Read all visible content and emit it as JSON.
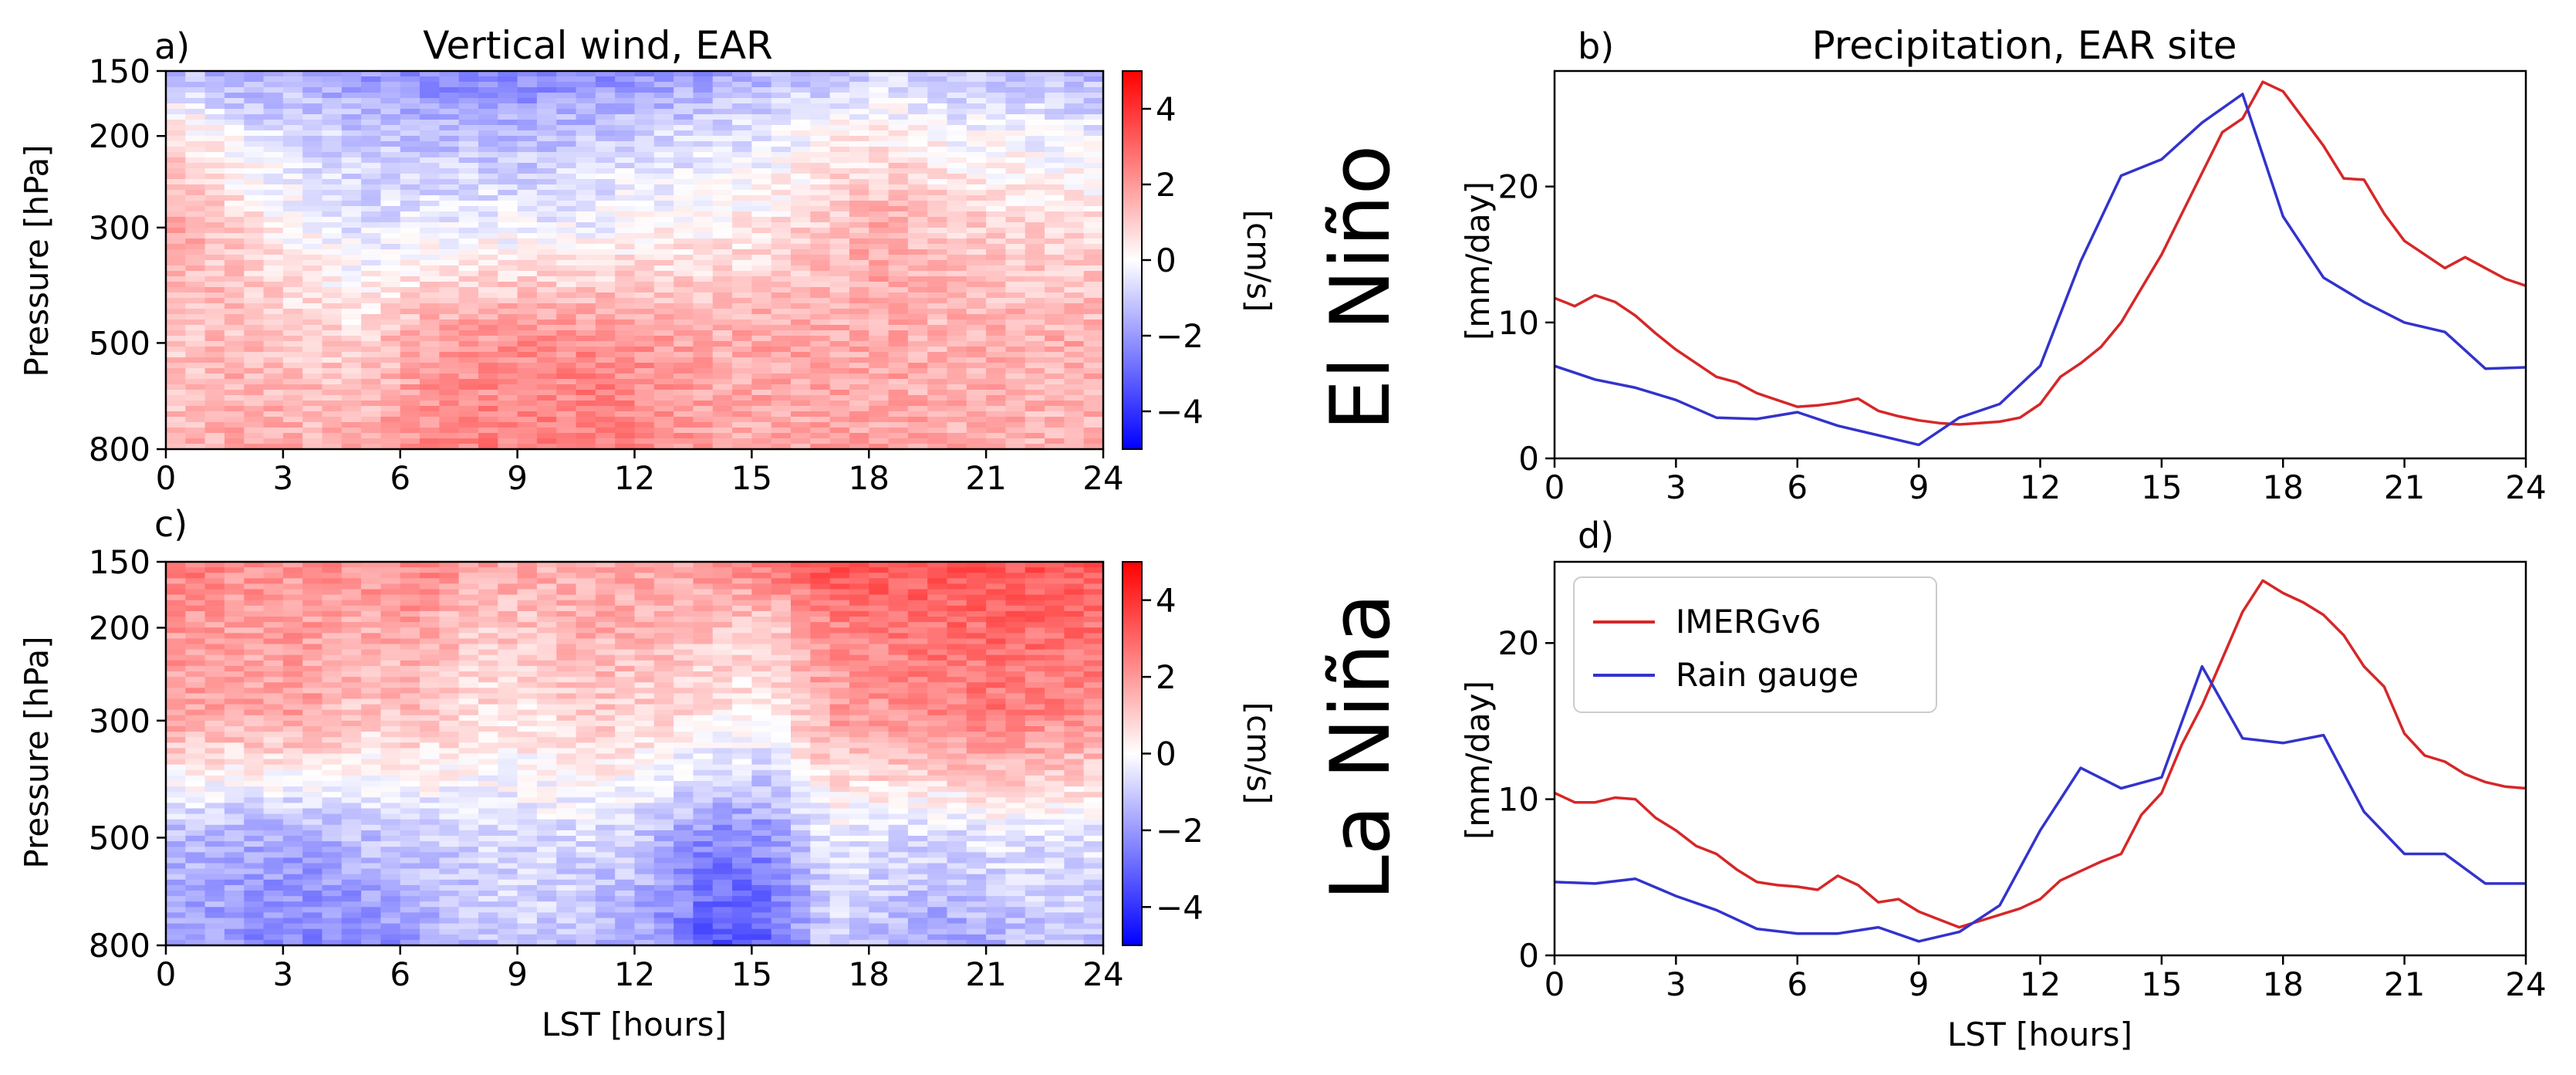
{
  "figure": {
    "row_labels": [
      "El Niño",
      "La Niña"
    ]
  },
  "chart_data": [
    {
      "id": "a",
      "type": "heatmap",
      "panel_label": "a)",
      "title": "Vertical wind, EAR",
      "ylabel": "Pressure [hPa]",
      "xlabel": "",
      "xlim": [
        0,
        24
      ],
      "xticks": [
        0,
        3,
        6,
        9,
        12,
        15,
        18,
        21,
        24
      ],
      "ylim": [
        800,
        150
      ],
      "yscale": "log",
      "yticks": [
        150,
        200,
        300,
        500,
        800
      ],
      "levels": [
        150,
        200,
        300,
        500,
        800
      ],
      "hours": [
        0.5,
        2,
        3.5,
        5,
        6.5,
        8,
        9.5,
        11,
        12.5,
        14,
        15.5,
        17,
        18.5,
        20,
        21.5,
        23
      ],
      "values_by_level": [
        [
          -1.2,
          -1.8,
          -1.5,
          -2.0,
          -2.4,
          -2.6,
          -2.5,
          -2.3,
          -2.2,
          -1.9,
          -1.4,
          -1.2,
          -1.0,
          -1.3,
          -1.1,
          -1.5
        ],
        [
          0.6,
          -0.4,
          -0.8,
          -1.0,
          -1.2,
          -1.4,
          -1.3,
          -1.0,
          -0.8,
          -0.6,
          -0.4,
          0.2,
          0.4,
          0.0,
          -0.2,
          -0.3
        ],
        [
          1.6,
          0.8,
          0.0,
          -0.6,
          -0.4,
          -0.2,
          -0.3,
          -0.2,
          0.1,
          0.2,
          0.5,
          1.2,
          1.8,
          1.0,
          0.9,
          0.7
        ],
        [
          1.2,
          1.4,
          1.0,
          0.8,
          1.8,
          2.1,
          2.2,
          2.3,
          2.0,
          1.6,
          1.8,
          1.6,
          1.7,
          1.5,
          1.6,
          1.6
        ],
        [
          1.4,
          1.8,
          1.6,
          1.6,
          2.2,
          2.5,
          2.4,
          2.6,
          2.2,
          1.8,
          1.6,
          1.8,
          1.8,
          1.6,
          1.5,
          1.4
        ]
      ],
      "colorbar": {
        "label": "[cm/s]",
        "range": [
          -5,
          5
        ],
        "ticks": [
          -4,
          -2,
          0,
          2,
          4
        ],
        "cmap": "bwr"
      }
    },
    {
      "id": "b",
      "type": "line",
      "panel_label": "b)",
      "title": "Precipitation, EAR site",
      "ylabel": "[mm/day]",
      "xlabel": "",
      "xlim": [
        0,
        24
      ],
      "xticks": [
        0,
        3,
        6,
        9,
        12,
        15,
        18,
        21,
        24
      ],
      "ylim": [
        0,
        28.5
      ],
      "yticks": [
        0,
        10,
        20
      ],
      "series": [
        {
          "name": "IMERGv6",
          "color": "#d62728",
          "x": [
            0,
            0.5,
            1,
            1.5,
            2,
            2.5,
            3,
            3.5,
            4,
            4.5,
            5,
            5.5,
            6,
            6.5,
            7,
            7.5,
            8,
            8.5,
            9,
            9.5,
            10,
            10.5,
            11,
            11.5,
            12,
            12.5,
            13,
            13.5,
            14,
            14.5,
            15,
            15.5,
            16,
            16.5,
            17,
            17.5,
            18,
            18.5,
            19,
            19.5,
            20,
            20.5,
            21,
            21.5,
            22,
            22.5,
            23,
            23.5,
            24
          ],
          "y": [
            11.8,
            11.2,
            12.0,
            11.5,
            10.5,
            9.2,
            8.0,
            7.0,
            6.0,
            5.6,
            4.8,
            4.3,
            3.8,
            3.9,
            4.1,
            4.4,
            3.5,
            3.1,
            2.8,
            2.6,
            2.5,
            2.6,
            2.7,
            3.0,
            4.0,
            6.0,
            7.0,
            8.2,
            10.0,
            12.5,
            15.0,
            18.0,
            21.0,
            24.0,
            25.0,
            27.7,
            27.0,
            25.0,
            23.0,
            20.6,
            20.5,
            18.0,
            16.0,
            15.0,
            14.0,
            14.8,
            14.0,
            13.2,
            12.7
          ]
        },
        {
          "name": "Rain gauge",
          "color": "#3333cc",
          "x": [
            0,
            1,
            2,
            3,
            4,
            5,
            6,
            7,
            8,
            9,
            10,
            11,
            12,
            13,
            14,
            15,
            16,
            17,
            18,
            19,
            20,
            21,
            22,
            23,
            24
          ],
          "y": [
            6.8,
            5.8,
            5.2,
            4.3,
            3.0,
            2.9,
            3.4,
            2.4,
            1.7,
            1.0,
            3.0,
            4.0,
            6.8,
            14.5,
            20.8,
            22.0,
            24.7,
            26.8,
            17.8,
            13.3,
            11.5,
            10.0,
            9.3,
            6.6,
            6.7
          ]
        }
      ]
    },
    {
      "id": "c",
      "type": "heatmap",
      "panel_label": "c)",
      "title": "",
      "ylabel": "Pressure [hPa]",
      "xlabel": "LST [hours]",
      "xlim": [
        0,
        24
      ],
      "xticks": [
        0,
        3,
        6,
        9,
        12,
        15,
        18,
        21,
        24
      ],
      "ylim": [
        800,
        150
      ],
      "yscale": "log",
      "yticks": [
        150,
        200,
        300,
        500,
        800
      ],
      "levels": [
        150,
        200,
        300,
        500,
        800
      ],
      "hours": [
        0.5,
        2,
        3.5,
        5,
        6.5,
        8,
        9.5,
        11,
        12.5,
        14,
        15.5,
        17,
        18.5,
        20,
        21.5,
        23
      ],
      "values_by_level": [
        [
          2.6,
          2.2,
          2.0,
          2.2,
          2.4,
          1.8,
          1.6,
          1.5,
          1.8,
          2.0,
          2.6,
          3.6,
          3.4,
          3.2,
          3.4,
          3.2
        ],
        [
          2.0,
          1.8,
          2.0,
          1.6,
          1.8,
          1.0,
          1.2,
          1.6,
          1.4,
          1.2,
          1.0,
          2.2,
          2.6,
          2.8,
          3.0,
          2.8
        ],
        [
          1.8,
          1.6,
          1.8,
          1.0,
          1.2,
          0.6,
          0.6,
          1.0,
          0.8,
          0.4,
          0.2,
          1.8,
          2.0,
          2.4,
          2.6,
          2.2
        ],
        [
          -1.4,
          -1.6,
          -1.8,
          -1.2,
          -1.0,
          -0.8,
          -0.6,
          -0.8,
          -1.2,
          -2.4,
          -2.2,
          -0.4,
          -0.6,
          -0.8,
          -0.4,
          -0.6
        ],
        [
          -1.8,
          -2.2,
          -2.4,
          -2.6,
          -1.8,
          -1.2,
          -1.0,
          -1.4,
          -2.0,
          -3.4,
          -3.0,
          -1.0,
          -1.4,
          -2.0,
          -1.4,
          -1.2
        ]
      ],
      "colorbar": {
        "label": "[cm/s]",
        "range": [
          -5,
          5
        ],
        "ticks": [
          -4,
          -2,
          0,
          2,
          4
        ],
        "cmap": "bwr"
      }
    },
    {
      "id": "d",
      "type": "line",
      "panel_label": "d)",
      "title": "",
      "ylabel": "[mm/day]",
      "xlabel": "LST [hours]",
      "xlim": [
        0,
        24
      ],
      "xticks": [
        0,
        3,
        6,
        9,
        12,
        15,
        18,
        21,
        24
      ],
      "ylim": [
        0,
        25.2
      ],
      "yticks": [
        0,
        10,
        20
      ],
      "legend": {
        "location": "upper-left"
      },
      "series": [
        {
          "name": "IMERGv6",
          "color": "#d62728",
          "x": [
            0,
            0.5,
            1,
            1.5,
            2,
            2.5,
            3,
            3.5,
            4,
            4.5,
            5,
            5.5,
            6,
            6.5,
            7,
            7.5,
            8,
            8.5,
            9,
            9.5,
            10,
            10.5,
            11,
            11.5,
            12,
            12.5,
            13,
            13.5,
            14,
            14.5,
            15,
            15.5,
            16,
            16.5,
            17,
            17.5,
            18,
            18.5,
            19,
            19.5,
            20,
            20.5,
            21,
            21.5,
            22,
            22.5,
            23,
            23.5,
            24
          ],
          "y": [
            10.4,
            9.8,
            9.8,
            10.1,
            10.0,
            8.8,
            8.0,
            7.0,
            6.5,
            5.5,
            4.7,
            4.5,
            4.4,
            4.2,
            5.1,
            4.5,
            3.4,
            3.6,
            2.8,
            2.3,
            1.8,
            2.2,
            2.6,
            3.0,
            3.6,
            4.8,
            5.4,
            6.0,
            6.5,
            9.0,
            10.4,
            13.5,
            16.0,
            19.0,
            22.0,
            24.0,
            23.2,
            22.6,
            21.8,
            20.5,
            18.5,
            17.2,
            14.2,
            12.8,
            12.4,
            11.6,
            11.1,
            10.8,
            10.7
          ]
        },
        {
          "name": "Rain gauge",
          "color": "#3333cc",
          "x": [
            0,
            1,
            2,
            3,
            4,
            5,
            6,
            7,
            8,
            9,
            10,
            11,
            12,
            13,
            14,
            15,
            16,
            17,
            18,
            19,
            20,
            21,
            22,
            23,
            24
          ],
          "y": [
            4.7,
            4.6,
            4.9,
            3.8,
            2.9,
            1.7,
            1.4,
            1.4,
            1.8,
            0.9,
            1.5,
            3.2,
            8.0,
            12.0,
            10.7,
            11.4,
            18.5,
            13.9,
            13.6,
            14.1,
            9.2,
            6.5,
            6.5,
            4.6,
            4.6
          ]
        }
      ]
    }
  ]
}
